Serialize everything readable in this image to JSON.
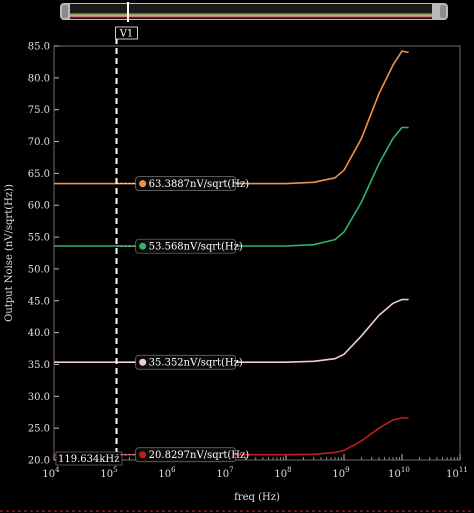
{
  "chart_data": {
    "type": "line",
    "xlabel": "freq (Hz)",
    "ylabel": "Output Noise (nV/sqrt(Hz))",
    "xscale": "log",
    "xlim": [
      10000,
      100000000000
    ],
    "ylim": [
      20.0,
      85.0
    ],
    "yticks": [
      "20.0",
      "25.0",
      "30.0",
      "35.0",
      "40.0",
      "45.0",
      "50.0",
      "55.0",
      "60.0",
      "65.0",
      "70.0",
      "75.0",
      "80.0",
      "85.0"
    ],
    "xticks": [
      {
        "base": "10",
        "exp": "4"
      },
      {
        "base": "10",
        "exp": "5"
      },
      {
        "base": "10",
        "exp": "6"
      },
      {
        "base": "10",
        "exp": "7"
      },
      {
        "base": "10",
        "exp": "8"
      },
      {
        "base": "10",
        "exp": "9"
      },
      {
        "base": "10",
        "exp": "10"
      },
      {
        "base": "10",
        "exp": "11"
      }
    ],
    "grid": false,
    "series": [
      {
        "color": "#f0914a",
        "x": [
          10000,
          100000,
          1000000,
          10000000,
          100000000,
          300000000,
          700000000,
          1000000000,
          2000000000,
          4000000000,
          7000000000,
          10000000000,
          13000000000
        ],
        "values": [
          63.4,
          63.4,
          63.4,
          63.4,
          63.4,
          63.6,
          64.3,
          65.5,
          70.5,
          77.5,
          82.0,
          84.2,
          84.0
        ]
      },
      {
        "color": "#2fb36a",
        "x": [
          10000,
          100000,
          1000000,
          10000000,
          100000000,
          300000000,
          700000000,
          1000000000,
          2000000000,
          4000000000,
          7000000000,
          10000000000,
          13000000000
        ],
        "values": [
          53.6,
          53.6,
          53.6,
          53.6,
          53.6,
          53.8,
          54.6,
          55.8,
          60.5,
          66.5,
          70.5,
          72.2,
          72.2
        ]
      },
      {
        "color": "#f3c9d9",
        "x": [
          10000,
          100000,
          1000000,
          10000000,
          100000000,
          300000000,
          700000000,
          1000000000,
          2000000000,
          4000000000,
          7000000000,
          10000000000,
          13000000000
        ],
        "values": [
          35.35,
          35.35,
          35.35,
          35.35,
          35.35,
          35.5,
          35.9,
          36.6,
          39.5,
          42.7,
          44.6,
          45.2,
          45.2
        ]
      },
      {
        "color": "#c01e1e",
        "x": [
          10000,
          100000,
          1000000,
          10000000,
          100000000,
          300000000,
          700000000,
          1000000000,
          2000000000,
          4000000000,
          7000000000,
          10000000000,
          13000000000
        ],
        "values": [
          20.83,
          20.83,
          20.83,
          20.83,
          20.83,
          20.9,
          21.2,
          21.5,
          23.0,
          25.0,
          26.3,
          26.6,
          26.6
        ]
      }
    ],
    "cursor": {
      "name": "V1",
      "x": 119634,
      "label": "119.634kHz"
    },
    "markers": [
      {
        "x": 300000,
        "y": 63.3887,
        "label": "63.3887nV/sqrt(Hz)",
        "color": "#f0914a"
      },
      {
        "x": 300000,
        "y": 53.568,
        "label": "53.568nV/sqrt(Hz)",
        "color": "#2fb36a"
      },
      {
        "x": 300000,
        "y": 35.352,
        "label": "35.352nV/sqrt(Hz)",
        "color": "#f3c9d9"
      },
      {
        "x": 300000,
        "y": 20.8297,
        "label": "20.8297nV/sqrt(Hz)",
        "color": "#c01e1e"
      }
    ]
  }
}
